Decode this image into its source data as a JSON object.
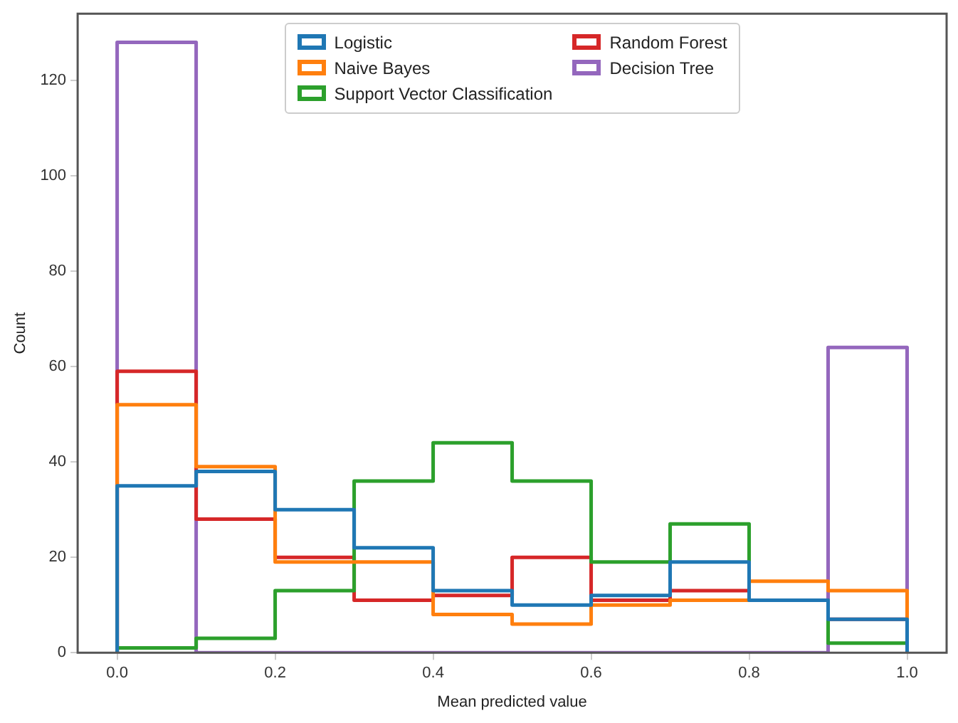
{
  "chart_data": {
    "type": "histogram",
    "xlabel": "Mean predicted value",
    "ylabel": "Count",
    "bins": [
      0,
      0.1,
      0.2,
      0.3,
      0.4,
      0.5,
      0.6,
      0.7,
      0.8,
      0.9,
      1.0
    ],
    "series": [
      {
        "name": "Logistic",
        "color": "#1f77b4",
        "values": [
          35,
          38,
          30,
          22,
          13,
          10,
          12,
          19,
          11,
          7
        ]
      },
      {
        "name": "Naive Bayes",
        "color": "#ff7f0e",
        "values": [
          52,
          39,
          19,
          19,
          8,
          6,
          10,
          11,
          15,
          13
        ]
      },
      {
        "name": "Support Vector Classification",
        "color": "#2ca02c",
        "values": [
          1,
          3,
          13,
          36,
          44,
          36,
          19,
          27,
          11,
          2
        ]
      },
      {
        "name": "Random Forest",
        "color": "#d62728",
        "values": [
          59,
          28,
          20,
          11,
          12,
          20,
          11,
          13,
          11,
          7
        ]
      },
      {
        "name": "Decision Tree",
        "color": "#9467bd",
        "values": [
          128,
          0,
          0,
          0,
          0,
          0,
          0,
          0,
          0,
          64
        ]
      }
    ],
    "xlim": [
      -0.05,
      1.05
    ],
    "ylim": [
      0,
      134
    ],
    "xticks": [
      {
        "value": 0,
        "label": "0.0"
      },
      0.2,
      0.4,
      0.6,
      0.8,
      {
        "value": 1,
        "label": "1.0"
      }
    ],
    "yticks": [
      0,
      20,
      40,
      60,
      80,
      100,
      120
    ],
    "grid": false,
    "legend": "top"
  }
}
